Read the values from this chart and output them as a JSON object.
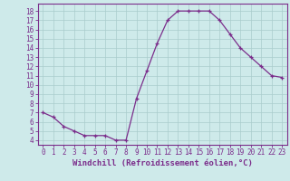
{
  "x": [
    0,
    1,
    2,
    3,
    4,
    5,
    6,
    7,
    8,
    9,
    10,
    11,
    12,
    13,
    14,
    15,
    16,
    17,
    18,
    19,
    20,
    21,
    22,
    23
  ],
  "y": [
    7,
    6.5,
    5.5,
    5,
    4.5,
    4.5,
    4.5,
    4,
    4,
    8.5,
    11.5,
    14.5,
    17,
    18,
    18,
    18,
    18,
    17,
    15.5,
    14,
    13,
    12,
    11,
    10.8
  ],
  "line_color": "#7b2d8b",
  "marker": "+",
  "bg_color": "#ceeaea",
  "grid_color": "#b8d8d8",
  "xlabel": "Windchill (Refroidissement éolien,°C)",
  "ylabel_ticks": [
    4,
    5,
    6,
    7,
    8,
    9,
    10,
    11,
    12,
    13,
    14,
    15,
    16,
    17,
    18
  ],
  "xlim": [
    -0.5,
    23.5
  ],
  "ylim": [
    3.5,
    18.8
  ],
  "xlabel_fontsize": 6.5,
  "tick_fontsize": 5.5,
  "marker_size": 3.5,
  "line_width": 0.9
}
